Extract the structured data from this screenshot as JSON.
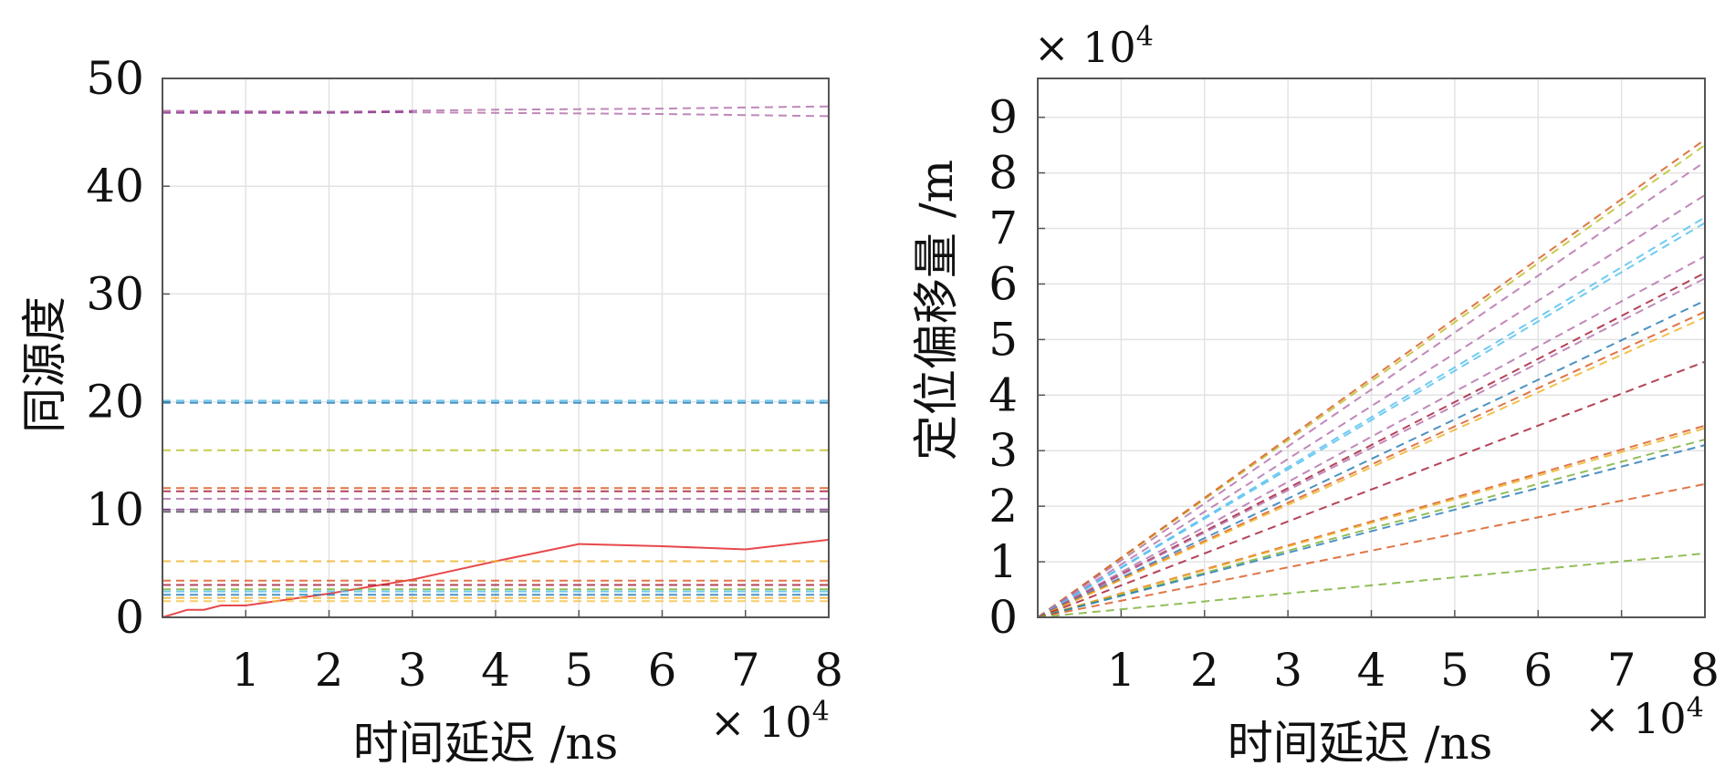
{
  "chart_data": [
    {
      "type": "line",
      "xlabel": "时间延迟 /ns",
      "ylabel": "同源度",
      "x_multiplier": {
        "base": "10",
        "exp": "4"
      },
      "x_multiplier_text": "× 10",
      "xlim": [
        0,
        8
      ],
      "ylim": [
        0,
        50
      ],
      "xticks": [
        1,
        2,
        3,
        4,
        5,
        6,
        7,
        8
      ],
      "yticks": [
        0,
        10,
        20,
        30,
        40,
        50
      ],
      "grid": true,
      "legend": "none",
      "series": [
        {
          "color": "#e8484b",
          "style": "solid",
          "points": [
            [
              0,
              0
            ],
            [
              0.3,
              0.7
            ],
            [
              0.5,
              0.7
            ],
            [
              0.7,
              1.1
            ],
            [
              1,
              1.1
            ],
            [
              2,
              2.2
            ],
            [
              3,
              3.5
            ],
            [
              4,
              5.2
            ],
            [
              5,
              6.8
            ],
            [
              6,
              6.6
            ],
            [
              7,
              6.3
            ],
            [
              8,
              7.2
            ]
          ]
        },
        {
          "color": "#b06aa8",
          "style": "dashed",
          "points": [
            [
              0,
              47.0
            ],
            [
              2,
              46.9
            ],
            [
              4,
              47.1
            ],
            [
              6,
              47.2
            ],
            [
              8,
              47.4
            ]
          ]
        },
        {
          "color": "#b06aa8",
          "style": "dashed",
          "points": [
            [
              0,
              46.9
            ],
            [
              2,
              46.9
            ],
            [
              4,
              46.8
            ],
            [
              6,
              46.7
            ],
            [
              8,
              46.5
            ]
          ]
        },
        {
          "color": "#8b3a8f",
          "style": "dashed",
          "points": [
            [
              0,
              46.8
            ],
            [
              2,
              46.8
            ],
            [
              3,
              46.9
            ]
          ]
        },
        {
          "color": "#1f77b4",
          "style": "dashed",
          "points": [
            [
              0,
              19.9
            ],
            [
              8,
              19.9
            ]
          ]
        },
        {
          "color": "#4dbeee",
          "style": "dashed",
          "points": [
            [
              0,
              20.1
            ],
            [
              8,
              20.1
            ]
          ]
        },
        {
          "color": "#bcbd22",
          "style": "dashed",
          "points": [
            [
              0,
              15.5
            ],
            [
              8,
              15.5
            ]
          ]
        },
        {
          "color": "#d95319",
          "style": "dashed",
          "points": [
            [
              0,
              12.0
            ],
            [
              8,
              12.0
            ]
          ]
        },
        {
          "color": "#a2142f",
          "style": "dashed",
          "points": [
            [
              0,
              11.7
            ],
            [
              8,
              11.7
            ]
          ]
        },
        {
          "color": "#b06aa8",
          "style": "dashed",
          "points": [
            [
              0,
              11.0
            ],
            [
              8,
              11.0
            ]
          ]
        },
        {
          "color": "#7e2f8e",
          "style": "dashed",
          "points": [
            [
              0,
              10.0
            ],
            [
              8,
              10.0
            ]
          ]
        },
        {
          "color": "#444444",
          "style": "dashed",
          "points": [
            [
              0,
              9.8
            ],
            [
              8,
              9.8
            ]
          ]
        },
        {
          "color": "#edb120",
          "style": "dashed",
          "points": [
            [
              0,
              5.2
            ],
            [
              8,
              5.2
            ]
          ]
        },
        {
          "color": "#d95319",
          "style": "dashed",
          "points": [
            [
              0,
              3.4
            ],
            [
              8,
              3.4
            ]
          ]
        },
        {
          "color": "#a2142f",
          "style": "dashed",
          "points": [
            [
              0,
              3.0
            ],
            [
              8,
              3.0
            ]
          ]
        },
        {
          "color": "#77ac30",
          "style": "dashed",
          "points": [
            [
              0,
              2.6
            ],
            [
              8,
              2.6
            ]
          ]
        },
        {
          "color": "#4dbeee",
          "style": "dashed",
          "points": [
            [
              0,
              2.4
            ],
            [
              8,
              2.4
            ]
          ]
        },
        {
          "color": "#1f77b4",
          "style": "dashed",
          "points": [
            [
              0,
              2.1
            ],
            [
              8,
              2.1
            ]
          ]
        },
        {
          "color": "#edb120",
          "style": "dashed",
          "points": [
            [
              0,
              1.8
            ],
            [
              8,
              1.8
            ]
          ]
        },
        {
          "color": "#f5c242",
          "style": "dashed",
          "points": [
            [
              0,
              1.5
            ],
            [
              8,
              1.5
            ]
          ]
        }
      ]
    },
    {
      "type": "line",
      "xlabel": "时间延迟 /ns",
      "ylabel": "定位偏移量 /m",
      "x_multiplier": {
        "base": "10",
        "exp": "4"
      },
      "y_multiplier": {
        "base": "10",
        "exp": "4"
      },
      "x_multiplier_text": "× 10",
      "y_multiplier_text": "× 10",
      "xlim": [
        0,
        8
      ],
      "ylim": [
        0,
        9.7
      ],
      "xticks": [
        1,
        2,
        3,
        4,
        5,
        6,
        7,
        8
      ],
      "yticks": [
        0,
        1,
        2,
        3,
        4,
        5,
        6,
        7,
        8,
        9
      ],
      "grid": true,
      "legend": "none",
      "series": [
        {
          "color": "#bcbd22",
          "style": "dashed",
          "points": [
            [
              0,
              0
            ],
            [
              8,
              8.5
            ]
          ]
        },
        {
          "color": "#d95319",
          "style": "dashed",
          "points": [
            [
              0,
              0
            ],
            [
              8,
              8.6
            ]
          ]
        },
        {
          "color": "#b06aa8",
          "style": "dashed",
          "points": [
            [
              0,
              0
            ],
            [
              8,
              8.2
            ]
          ]
        },
        {
          "color": "#b06aa8",
          "style": "dashed",
          "points": [
            [
              0,
              0
            ],
            [
              8,
              7.6
            ]
          ]
        },
        {
          "color": "#4dbeee",
          "style": "dashed",
          "points": [
            [
              0,
              0
            ],
            [
              8,
              7.2
            ]
          ]
        },
        {
          "color": "#4dbeee",
          "style": "dashed",
          "points": [
            [
              0,
              0
            ],
            [
              8,
              7.1
            ]
          ]
        },
        {
          "color": "#b06aa8",
          "style": "dashed",
          "points": [
            [
              0,
              0
            ],
            [
              8,
              6.5
            ]
          ]
        },
        {
          "color": "#a2142f",
          "style": "dashed",
          "points": [
            [
              0,
              0
            ],
            [
              8,
              6.2
            ]
          ]
        },
        {
          "color": "#b06aa8",
          "style": "dashed",
          "points": [
            [
              0,
              0
            ],
            [
              8,
              6.1
            ]
          ]
        },
        {
          "color": "#1f77b4",
          "style": "dashed",
          "points": [
            [
              0,
              0
            ],
            [
              8,
              5.7
            ]
          ]
        },
        {
          "color": "#d95319",
          "style": "dashed",
          "points": [
            [
              0,
              0
            ],
            [
              8,
              5.5
            ]
          ]
        },
        {
          "color": "#edb120",
          "style": "dashed",
          "points": [
            [
              0,
              0
            ],
            [
              8,
              5.4
            ]
          ]
        },
        {
          "color": "#a2142f",
          "style": "dashed",
          "points": [
            [
              0,
              0
            ],
            [
              8,
              4.6
            ]
          ]
        },
        {
          "color": "#d95319",
          "style": "dashed",
          "points": [
            [
              0,
              0
            ],
            [
              8,
              3.45
            ]
          ]
        },
        {
          "color": "#edb120",
          "style": "dashed",
          "points": [
            [
              0,
              0
            ],
            [
              8,
              3.4
            ]
          ]
        },
        {
          "color": "#77ac30",
          "style": "dashed",
          "points": [
            [
              0,
              0
            ],
            [
              8,
              3.2
            ]
          ]
        },
        {
          "color": "#1f77b4",
          "style": "dashed",
          "points": [
            [
              0,
              0
            ],
            [
              8,
              3.1
            ]
          ]
        },
        {
          "color": "#d95319",
          "style": "dashed",
          "points": [
            [
              0,
              0
            ],
            [
              8,
              2.4
            ]
          ]
        },
        {
          "color": "#77ac30",
          "style": "dashed",
          "points": [
            [
              0,
              0
            ],
            [
              8,
              1.15
            ]
          ]
        },
        {
          "color": "#e8484b",
          "style": "solid",
          "points": [
            [
              0,
              0
            ],
            [
              8,
              0
            ]
          ]
        }
      ]
    }
  ]
}
